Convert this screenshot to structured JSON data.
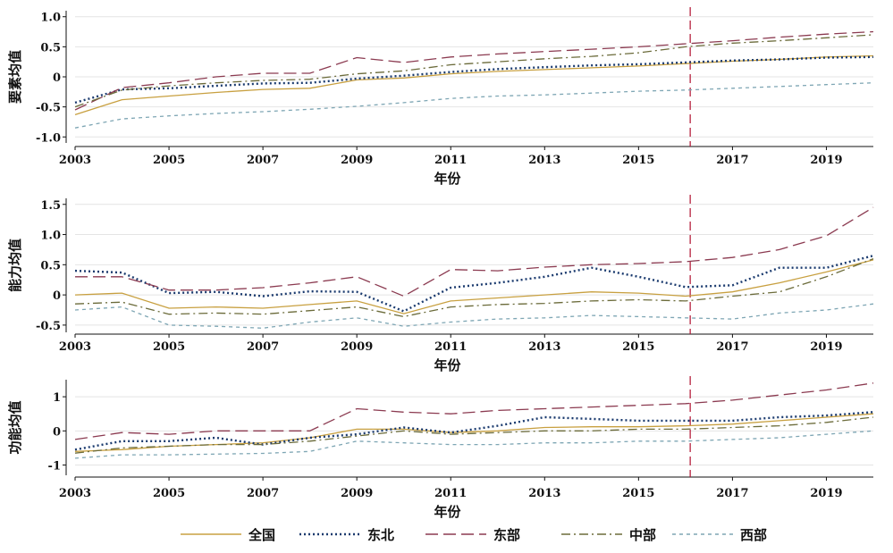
{
  "chart_data": [
    {
      "type": "line",
      "ylabel": "要素均值",
      "xlabel": "年份",
      "x": [
        2003,
        2004,
        2005,
        2006,
        2007,
        2008,
        2009,
        2010,
        2011,
        2012,
        2013,
        2014,
        2015,
        2016,
        2017,
        2018,
        2019,
        2020
      ],
      "xticks": [
        "2003",
        "2005",
        "2007",
        "2009",
        "2011",
        "2013",
        "2015",
        "2017",
        "2019"
      ],
      "ylim": [
        -1.1,
        1.1
      ],
      "yticks": [
        "1.0",
        "0.5",
        "0",
        "-0.5",
        "-1.0"
      ],
      "ytick_values": [
        1.0,
        0.5,
        0,
        -0.5,
        -1.0
      ],
      "vline": 2016.1,
      "series": [
        {
          "name": "全国",
          "values": [
            -0.63,
            -0.38,
            -0.32,
            -0.26,
            -0.21,
            -0.19,
            -0.05,
            -0.02,
            0.05,
            0.09,
            0.12,
            0.15,
            0.18,
            0.22,
            0.26,
            0.29,
            0.33,
            0.35
          ]
        },
        {
          "name": "东北",
          "values": [
            -0.43,
            -0.21,
            -0.19,
            -0.15,
            -0.11,
            -0.1,
            -0.03,
            0.02,
            0.08,
            0.13,
            0.16,
            0.19,
            0.21,
            0.24,
            0.27,
            0.29,
            0.32,
            0.33
          ]
        },
        {
          "name": "东部",
          "values": [
            -0.55,
            -0.18,
            -0.1,
            0.0,
            0.06,
            0.06,
            0.32,
            0.24,
            0.33,
            0.38,
            0.42,
            0.46,
            0.5,
            0.55,
            0.6,
            0.66,
            0.71,
            0.75
          ]
        },
        {
          "name": "中部",
          "values": [
            -0.5,
            -0.22,
            -0.15,
            -0.1,
            -0.06,
            -0.04,
            0.05,
            0.1,
            0.2,
            0.25,
            0.3,
            0.34,
            0.4,
            0.5,
            0.56,
            0.6,
            0.65,
            0.7
          ]
        },
        {
          "name": "西部",
          "values": [
            -0.85,
            -0.7,
            -0.65,
            -0.61,
            -0.58,
            -0.54,
            -0.49,
            -0.43,
            -0.36,
            -0.32,
            -0.3,
            -0.27,
            -0.24,
            -0.22,
            -0.19,
            -0.16,
            -0.13,
            -0.1
          ]
        }
      ]
    },
    {
      "type": "line",
      "ylabel": "能力均值",
      "xlabel": "年份",
      "x": [
        2003,
        2004,
        2005,
        2006,
        2007,
        2008,
        2009,
        2010,
        2011,
        2012,
        2013,
        2014,
        2015,
        2016,
        2017,
        2018,
        2019,
        2020
      ],
      "xticks": [
        "2003",
        "2005",
        "2007",
        "2009",
        "2011",
        "2013",
        "2015",
        "2017",
        "2019"
      ],
      "ylim": [
        -0.62,
        1.6
      ],
      "yticks": [
        "1.5",
        "1.0",
        "0.5",
        "0",
        "-0.5"
      ],
      "ytick_values": [
        1.5,
        1.0,
        0.5,
        0,
        -0.5
      ],
      "vline": 2016.1,
      "series": [
        {
          "name": "全国",
          "values": [
            0.0,
            0.03,
            -0.22,
            -0.2,
            -0.22,
            -0.16,
            -0.1,
            -0.31,
            -0.1,
            -0.05,
            0.0,
            0.05,
            0.03,
            -0.02,
            0.05,
            0.2,
            0.38,
            0.58
          ]
        },
        {
          "name": "东北",
          "values": [
            0.4,
            0.37,
            0.03,
            0.05,
            -0.02,
            0.06,
            0.05,
            -0.27,
            0.12,
            0.2,
            0.3,
            0.45,
            0.3,
            0.13,
            0.16,
            0.45,
            0.45,
            0.65
          ]
        },
        {
          "name": "东部",
          "values": [
            0.3,
            0.3,
            0.08,
            0.08,
            0.12,
            0.2,
            0.3,
            -0.02,
            0.42,
            0.4,
            0.46,
            0.5,
            0.52,
            0.55,
            0.62,
            0.75,
            0.98,
            1.45
          ]
        },
        {
          "name": "中部",
          "values": [
            -0.15,
            -0.12,
            -0.32,
            -0.3,
            -0.32,
            -0.26,
            -0.2,
            -0.36,
            -0.2,
            -0.16,
            -0.14,
            -0.1,
            -0.08,
            -0.1,
            -0.02,
            0.05,
            0.3,
            0.6
          ]
        },
        {
          "name": "西部",
          "values": [
            -0.25,
            -0.2,
            -0.5,
            -0.52,
            -0.55,
            -0.45,
            -0.38,
            -0.52,
            -0.45,
            -0.4,
            -0.38,
            -0.34,
            -0.36,
            -0.38,
            -0.4,
            -0.3,
            -0.25,
            -0.15
          ]
        }
      ]
    },
    {
      "type": "line",
      "ylabel": "功能均值",
      "xlabel": "年份",
      "x": [
        2003,
        2004,
        2005,
        2006,
        2007,
        2008,
        2009,
        2010,
        2011,
        2012,
        2013,
        2014,
        2015,
        2016,
        2017,
        2018,
        2019,
        2020
      ],
      "xticks": [
        "2003",
        "2005",
        "2007",
        "2009",
        "2011",
        "2013",
        "2015",
        "2017",
        "2019"
      ],
      "ylim": [
        -1.3,
        1.5
      ],
      "yticks": [
        "1",
        "0",
        "-1"
      ],
      "ytick_values": [
        1,
        0,
        -1
      ],
      "vline": 2016.1,
      "series": [
        {
          "name": "全国",
          "values": [
            -0.6,
            -0.55,
            -0.45,
            -0.4,
            -0.35,
            -0.2,
            0.05,
            0.05,
            -0.05,
            0.0,
            0.1,
            0.12,
            0.12,
            0.15,
            0.2,
            0.3,
            0.4,
            0.5
          ]
        },
        {
          "name": "东北",
          "values": [
            -0.55,
            -0.3,
            -0.3,
            -0.2,
            -0.4,
            -0.2,
            -0.1,
            0.1,
            -0.05,
            0.15,
            0.4,
            0.35,
            0.3,
            0.3,
            0.3,
            0.4,
            0.45,
            0.55
          ]
        },
        {
          "name": "东部",
          "values": [
            -0.25,
            -0.05,
            -0.1,
            0.0,
            0.0,
            0.0,
            0.65,
            0.55,
            0.5,
            0.6,
            0.65,
            0.7,
            0.75,
            0.8,
            0.9,
            1.05,
            1.2,
            1.4
          ]
        },
        {
          "name": "中部",
          "values": [
            -0.65,
            -0.5,
            -0.45,
            -0.4,
            -0.4,
            -0.3,
            -0.15,
            0.0,
            -0.1,
            -0.05,
            0.0,
            0.0,
            0.05,
            0.05,
            0.1,
            0.15,
            0.25,
            0.4
          ]
        },
        {
          "name": "西部",
          "values": [
            -0.8,
            -0.7,
            -0.7,
            -0.68,
            -0.66,
            -0.6,
            -0.3,
            -0.35,
            -0.4,
            -0.4,
            -0.35,
            -0.35,
            -0.3,
            -0.3,
            -0.25,
            -0.2,
            -0.1,
            0.0
          ]
        }
      ]
    }
  ],
  "legend": [
    {
      "name": "全国",
      "color": "#c8a040",
      "dash": ""
    },
    {
      "name": "东北",
      "color": "#1a3a6e",
      "dash": "2,3"
    },
    {
      "name": "东部",
      "color": "#8b3a50",
      "dash": "14,6"
    },
    {
      "name": "中部",
      "color": "#6b6b3a",
      "dash": "10,4,2,4"
    },
    {
      "name": "西部",
      "color": "#7ea6b4",
      "dash": "4,4"
    }
  ],
  "styles": {
    "vline_color": "#b01030",
    "axis_color": "#111111"
  }
}
